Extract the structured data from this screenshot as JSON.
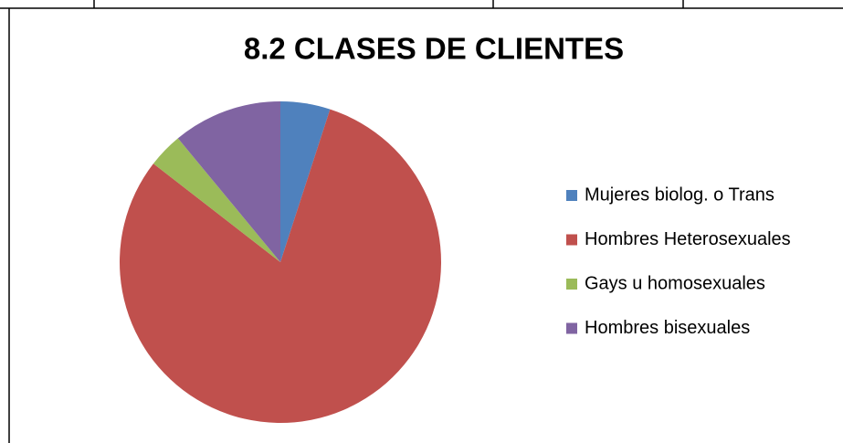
{
  "chart_data": {
    "type": "pie",
    "title": "8.2 CLASES DE CLIENTES",
    "categories": [
      "Mujeres biolog. o Trans",
      "Hombres Heterosexuales",
      "Gays u homosexuales",
      "Hombres bisexuales"
    ],
    "values": [
      5,
      80.5,
      3.5,
      11
    ],
    "colors": [
      "#4f81bd",
      "#c0504d",
      "#9bbb59",
      "#8064a2"
    ],
    "legend": "right"
  }
}
